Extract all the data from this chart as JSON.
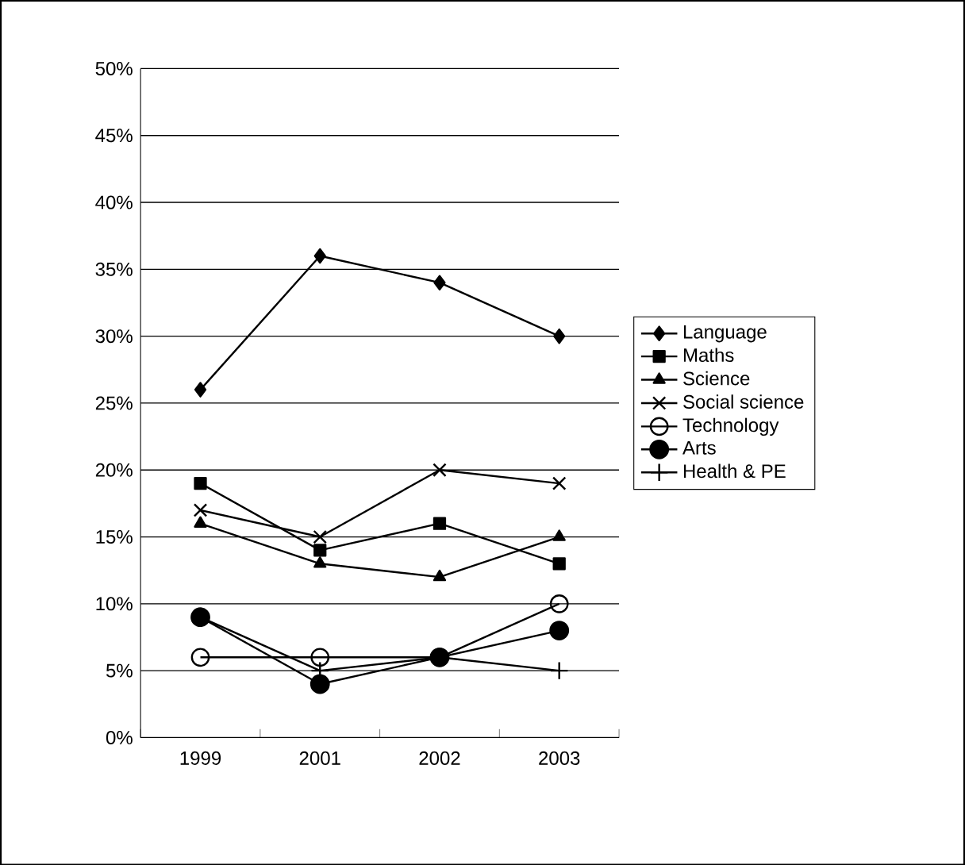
{
  "chart_data": {
    "type": "line",
    "categories": [
      "1999",
      "2001",
      "2002",
      "2003"
    ],
    "series": [
      {
        "name": "Language",
        "color": "#000000",
        "marker": "diamond",
        "values": [
          26,
          36,
          34,
          30
        ]
      },
      {
        "name": "Maths",
        "color": "#000000",
        "marker": "square",
        "values": [
          19,
          14,
          16,
          13
        ]
      },
      {
        "name": "Science",
        "color": "#000000",
        "marker": "triangle",
        "values": [
          16,
          13,
          12,
          15
        ]
      },
      {
        "name": "Social science",
        "color": "#000000",
        "marker": "cross",
        "values": [
          17,
          15,
          20,
          19
        ]
      },
      {
        "name": "Technology",
        "color": "#000000",
        "marker": "open circle",
        "values": [
          6,
          6,
          6,
          10
        ]
      },
      {
        "name": "Arts",
        "color": "#000000",
        "marker": "circle",
        "values": [
          9,
          4,
          6,
          8
        ]
      },
      {
        "name": "Health & PE",
        "color": "#000000",
        "marker": "cross",
        "values": [
          9,
          5,
          6,
          5
        ]
      }
    ],
    "ylim": [
      0,
      50
    ],
    "yticks": [
      {
        "value": 0,
        "label": "0%"
      },
      {
        "value": 5,
        "label": "5%"
      },
      {
        "value": 10,
        "label": "10%"
      },
      {
        "value": 15,
        "label": "15%"
      },
      {
        "value": 20,
        "label": "20%"
      },
      {
        "value": 25,
        "label": "25%"
      },
      {
        "value": 30,
        "label": "30%"
      },
      {
        "value": 35,
        "label": "35%"
      },
      {
        "value": 40,
        "label": "40%"
      },
      {
        "value": 45,
        "label": "45%"
      },
      {
        "value": 50,
        "label": "50%"
      }
    ],
    "grid": "y",
    "legend": "right",
    "line_style": "solid"
  }
}
